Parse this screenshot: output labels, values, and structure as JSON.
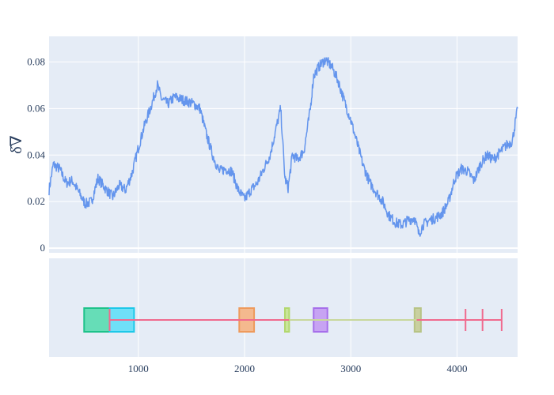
{
  "chart_data": {
    "type": "line",
    "title": "",
    "ylabel": "δ̂∇",
    "xlabel": "",
    "xlim": [
      160,
      4570
    ],
    "ylim": [
      -0.002,
      0.091
    ],
    "x_ticks": [
      1000,
      2000,
      3000,
      4000
    ],
    "x_tick_labels": [
      "1000",
      "2000",
      "3000",
      "4000"
    ],
    "y_ticks": [
      0,
      0.02,
      0.04,
      0.06,
      0.08
    ],
    "y_tick_labels": [
      "0",
      "0.02",
      "0.04",
      "0.06",
      "0.08"
    ],
    "grid": true,
    "series": [
      {
        "color": "#6495ED",
        "x": [
          160,
          200,
          260,
          320,
          380,
          440,
          500,
          560,
          620,
          700,
          760,
          820,
          880,
          940,
          1000,
          1060,
          1120,
          1180,
          1220,
          1280,
          1340,
          1400,
          1460,
          1520,
          1580,
          1640,
          1700,
          1760,
          1820,
          1880,
          1940,
          2000,
          2060,
          2120,
          2180,
          2240,
          2300,
          2340,
          2380,
          2410,
          2430,
          2450,
          2500,
          2560,
          2620,
          2650,
          2700,
          2760,
          2820,
          2880,
          2940,
          3000,
          3060,
          3120,
          3180,
          3240,
          3300,
          3360,
          3420,
          3480,
          3540,
          3600,
          3640,
          3680,
          3740,
          3800,
          3860,
          3920,
          3980,
          4040,
          4100,
          4160,
          4220,
          4280,
          4340,
          4400,
          4460,
          4520,
          4570
        ],
        "y": [
          0.025,
          0.036,
          0.034,
          0.028,
          0.029,
          0.024,
          0.019,
          0.02,
          0.03,
          0.025,
          0.022,
          0.027,
          0.025,
          0.032,
          0.043,
          0.053,
          0.061,
          0.07,
          0.064,
          0.062,
          0.065,
          0.064,
          0.063,
          0.062,
          0.06,
          0.049,
          0.04,
          0.033,
          0.034,
          0.033,
          0.025,
          0.021,
          0.025,
          0.028,
          0.034,
          0.04,
          0.052,
          0.06,
          0.03,
          0.026,
          0.033,
          0.04,
          0.038,
          0.042,
          0.06,
          0.074,
          0.078,
          0.081,
          0.078,
          0.072,
          0.063,
          0.055,
          0.045,
          0.035,
          0.028,
          0.024,
          0.02,
          0.014,
          0.011,
          0.01,
          0.012,
          0.013,
          0.006,
          0.01,
          0.012,
          0.013,
          0.015,
          0.02,
          0.03,
          0.034,
          0.033,
          0.029,
          0.036,
          0.04,
          0.038,
          0.041,
          0.044,
          0.046,
          0.06
        ]
      }
    ],
    "segments": {
      "markers": [
        730,
        4080,
        4240,
        4420
      ],
      "boxes": [
        {
          "x0": 490,
          "x1": 760,
          "fill": "#66DDB7",
          "stroke": "#1EC28A"
        },
        {
          "x0": 730,
          "x1": 960,
          "fill": "#6FE0F8",
          "stroke": "#1DC8E8"
        },
        {
          "x0": 1950,
          "x1": 2090,
          "fill": "#F4B98E",
          "stroke": "#EE9A5C"
        },
        {
          "x0": 2380,
          "x1": 2420,
          "fill": "#C9E59A",
          "stroke": "#B2D86E"
        },
        {
          "x0": 2650,
          "x1": 2780,
          "fill": "#C7A3F3",
          "stroke": "#A66FEA"
        },
        {
          "x0": 3600,
          "x1": 3660,
          "fill": "#C9D0A0",
          "stroke": "#B7C485"
        }
      ],
      "lines": [
        {
          "x0": 730,
          "x1": 4420,
          "color": "#F06A8E"
        },
        {
          "x0": 2420,
          "x1": 3620,
          "color": "#C8D89C"
        }
      ]
    }
  }
}
